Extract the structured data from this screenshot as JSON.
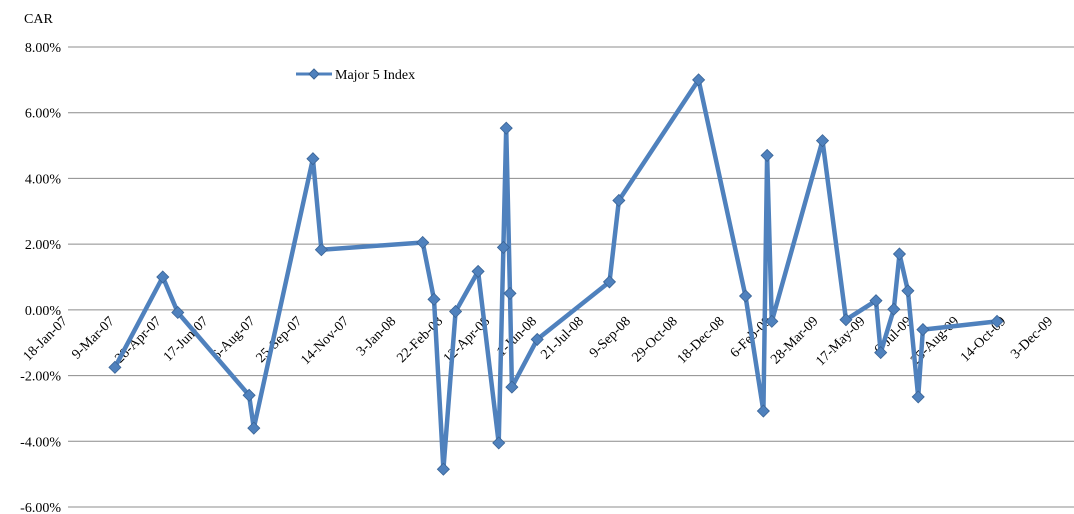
{
  "chart_data": {
    "type": "line",
    "ylabel": "CAR",
    "ylim": [
      -0.06,
      0.08
    ],
    "y_ticks": [
      0.08,
      0.06,
      0.04,
      0.02,
      0.0,
      -0.02,
      -0.04,
      -0.06
    ],
    "y_tick_labels": [
      "8.00%",
      "6.00%",
      "4.00%",
      "2.00%",
      "0.00%",
      "-2.00%",
      "-4.00%",
      "-6.00%"
    ],
    "x_ticks": [
      "2007-01-18",
      "2007-03-09",
      "2007-04-28",
      "2007-06-17",
      "2007-08-06",
      "2007-09-25",
      "2007-11-14",
      "2008-01-03",
      "2008-02-22",
      "2008-04-12",
      "2008-06-01",
      "2008-07-21",
      "2008-09-09",
      "2008-10-29",
      "2008-12-18",
      "2009-02-06",
      "2009-03-28",
      "2009-05-17",
      "2009-07-06",
      "2009-08-25",
      "2009-10-14",
      "2009-12-03"
    ],
    "x_tick_labels": [
      "18-Jan-07",
      "9-Mar-07",
      "28-Apr-07",
      "17-Jun-07",
      "6-Aug-07",
      "25-Sep-07",
      "14-Nov-07",
      "3-Jan-08",
      "22-Feb-08",
      "12-Apr-08",
      "1-Jun-08",
      "21-Jul-08",
      "9-Sep-08",
      "29-Oct-08",
      "18-Dec-08",
      "6-Feb-09",
      "28-Mar-09",
      "17-May-09",
      "6-Jul-09",
      "25-Aug-09",
      "14-Oct-09",
      "3-Dec-09"
    ],
    "xlim": [
      "2007-01-18",
      "2009-12-25"
    ],
    "grid": "horizontal",
    "legend_position": "top-left",
    "series": [
      {
        "name": "Major 5 Index",
        "color": "#4f81bd",
        "points": [
          {
            "x": "2007-03-09",
            "y": -0.0175
          },
          {
            "x": "2007-04-29",
            "y": 0.01
          },
          {
            "x": "2007-05-15",
            "y": -0.0008
          },
          {
            "x": "2007-07-30",
            "y": -0.026
          },
          {
            "x": "2007-08-04",
            "y": -0.036
          },
          {
            "x": "2007-10-06",
            "y": 0.046
          },
          {
            "x": "2007-10-15",
            "y": 0.0183
          },
          {
            "x": "2008-01-31",
            "y": 0.0205
          },
          {
            "x": "2008-02-12",
            "y": 0.0032
          },
          {
            "x": "2008-02-22",
            "y": -0.0485
          },
          {
            "x": "2008-03-06",
            "y": -0.0005
          },
          {
            "x": "2008-03-30",
            "y": 0.0117
          },
          {
            "x": "2008-04-21",
            "y": -0.0405
          },
          {
            "x": "2008-04-26",
            "y": 0.019
          },
          {
            "x": "2008-04-29",
            "y": 0.0553
          },
          {
            "x": "2008-05-03",
            "y": 0.005
          },
          {
            "x": "2008-05-05",
            "y": -0.0235
          },
          {
            "x": "2008-06-01",
            "y": -0.009
          },
          {
            "x": "2008-08-17",
            "y": 0.0085
          },
          {
            "x": "2008-08-27",
            "y": 0.0333
          },
          {
            "x": "2008-11-20",
            "y": 0.07
          },
          {
            "x": "2009-01-09",
            "y": 0.0042
          },
          {
            "x": "2009-01-28",
            "y": -0.0308
          },
          {
            "x": "2009-02-01",
            "y": 0.047
          },
          {
            "x": "2009-02-06",
            "y": -0.0035
          },
          {
            "x": "2009-04-01",
            "y": 0.0515
          },
          {
            "x": "2009-04-26",
            "y": -0.003
          },
          {
            "x": "2009-05-28",
            "y": 0.0028
          },
          {
            "x": "2009-06-02",
            "y": -0.013
          },
          {
            "x": "2009-06-16",
            "y": 0.0002
          },
          {
            "x": "2009-06-22",
            "y": 0.017
          },
          {
            "x": "2009-07-01",
            "y": 0.0058
          },
          {
            "x": "2009-07-12",
            "y": -0.0265
          },
          {
            "x": "2009-07-17",
            "y": -0.006
          },
          {
            "x": "2009-10-04",
            "y": -0.0035
          }
        ]
      }
    ]
  }
}
